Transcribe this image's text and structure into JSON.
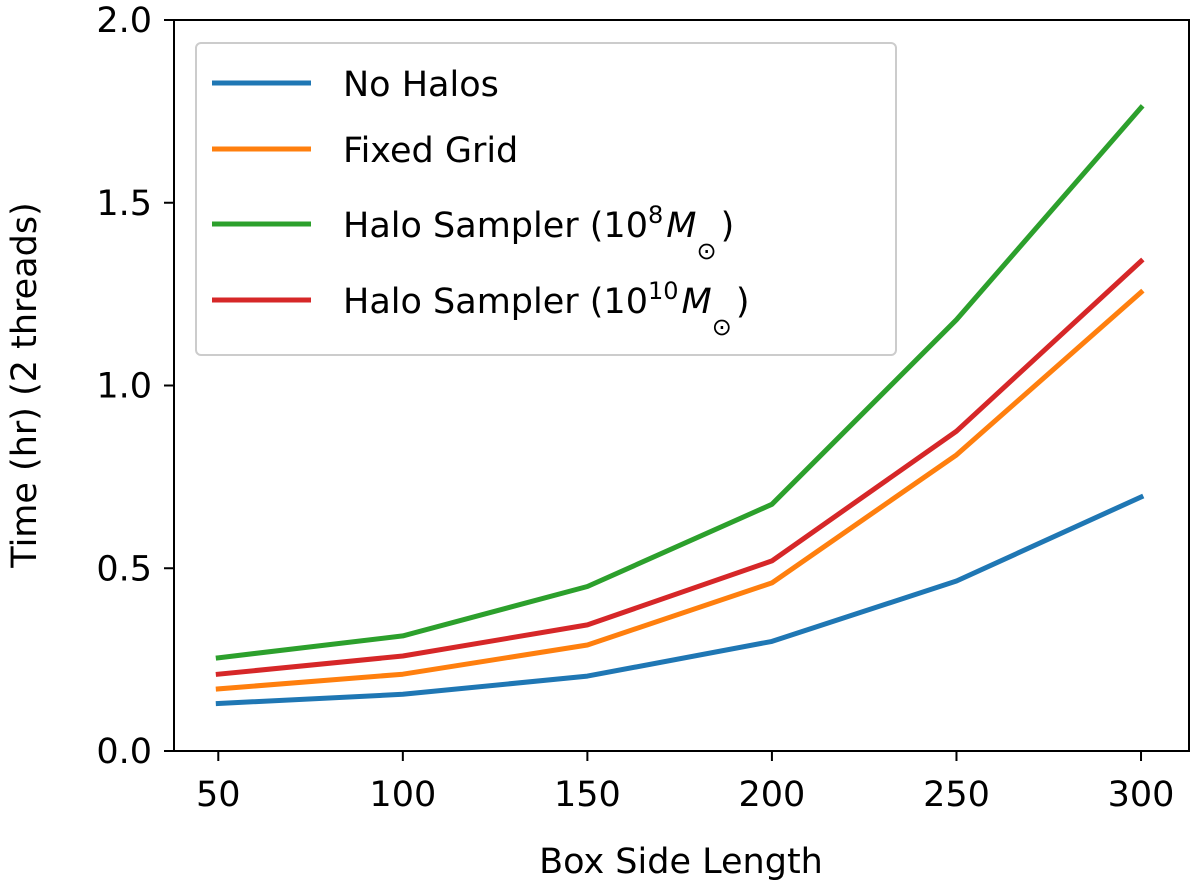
{
  "chart_data": {
    "type": "line",
    "title": "",
    "xlabel": "Box Side Length",
    "ylabel": "Time (hr) (2 threads)",
    "x": [
      50,
      100,
      150,
      200,
      250,
      300
    ],
    "xticks": [
      "50",
      "100",
      "150",
      "200",
      "250",
      "300"
    ],
    "yticks": [
      "0.0",
      "0.5",
      "1.0",
      "1.5",
      "2.0"
    ],
    "xlim": [
      38,
      313
    ],
    "ylim": [
      0,
      2.0
    ],
    "grid": false,
    "legend_position": "top-left",
    "series": [
      {
        "name": "No Halos",
        "legend_parts": [
          {
            "t": "No Halos",
            "s": ""
          }
        ],
        "color": "#1f77b4",
        "values": [
          0.13,
          0.155,
          0.205,
          0.3,
          0.465,
          0.695
        ]
      },
      {
        "name": "Fixed Grid",
        "legend_parts": [
          {
            "t": "Fixed Grid",
            "s": ""
          }
        ],
        "color": "#ff7f0e",
        "values": [
          0.17,
          0.21,
          0.29,
          0.46,
          0.81,
          1.255
        ]
      },
      {
        "name": "Halo Sampler (10^8 M⊙)",
        "legend_parts": [
          {
            "t": "Halo Sampler (10",
            "s": ""
          },
          {
            "t": "8",
            "s": "sup"
          },
          {
            "t": "M",
            "s": "it"
          },
          {
            "t": "⊙",
            "s": "sub"
          },
          {
            "t": ")",
            "s": ""
          }
        ],
        "color": "#2ca02c",
        "values": [
          0.255,
          0.315,
          0.45,
          0.675,
          1.18,
          1.76
        ]
      },
      {
        "name": "Halo Sampler (10^10 M⊙)",
        "legend_parts": [
          {
            "t": "Halo Sampler (10",
            "s": ""
          },
          {
            "t": "10",
            "s": "sup"
          },
          {
            "t": "M",
            "s": "it"
          },
          {
            "t": "⊙",
            "s": "sub"
          },
          {
            "t": ")",
            "s": ""
          }
        ],
        "color": "#d62728",
        "values": [
          0.21,
          0.26,
          0.345,
          0.52,
          0.875,
          1.34
        ]
      }
    ]
  }
}
